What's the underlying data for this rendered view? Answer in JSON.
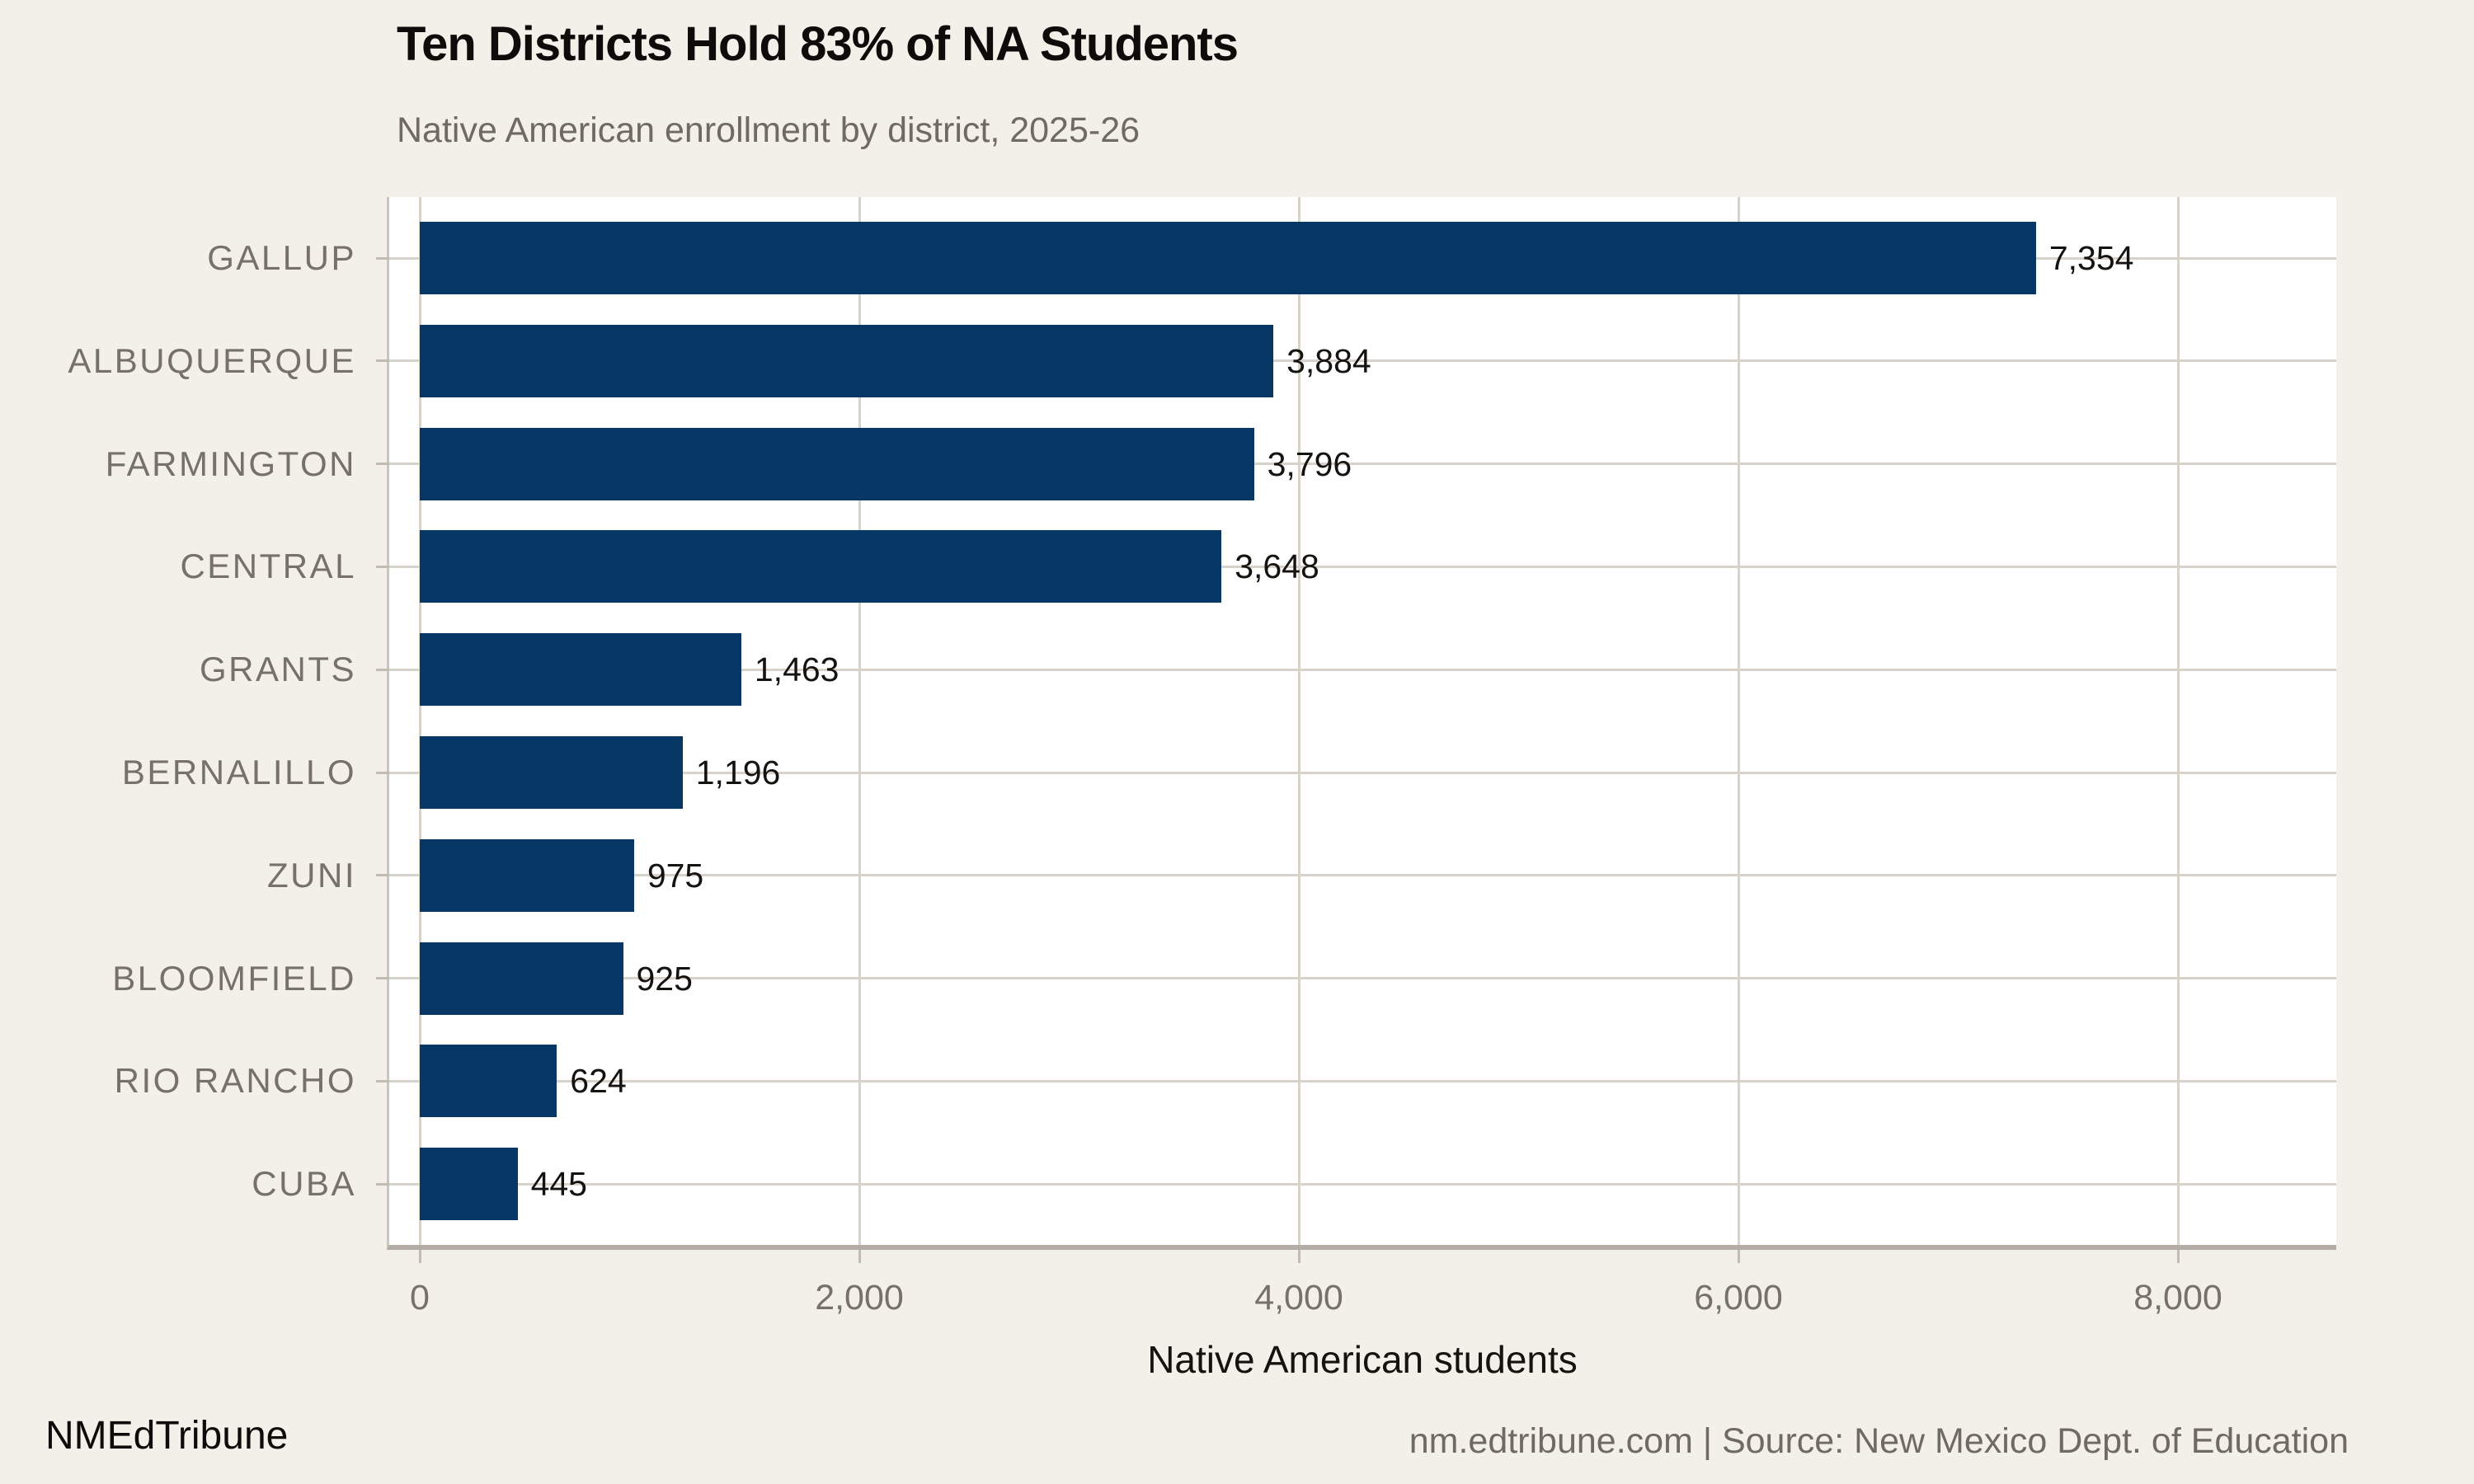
{
  "page": {
    "background_color": "#f3efe9"
  },
  "header": {
    "title": "Ten Districts Hold 83% of NA Students",
    "subtitle": "Native American enrollment by district, 2025-26"
  },
  "chart_data": {
    "type": "bar",
    "orientation": "horizontal",
    "title": "Ten Districts Hold 83% of NA Students",
    "subtitle": "Native American enrollment by district, 2025-26",
    "categories": [
      "GALLUP",
      "ALBUQUERQUE",
      "FARMINGTON",
      "CENTRAL",
      "GRANTS",
      "BERNALILLO",
      "ZUNI",
      "BLOOMFIELD",
      "RIO RANCHO",
      "CUBA"
    ],
    "values": [
      7354,
      3884,
      3796,
      3648,
      1463,
      1196,
      975,
      925,
      624,
      445
    ],
    "value_labels": [
      "7,354",
      "3,884",
      "3,796",
      "3,648",
      "1,463",
      "1,196",
      "975",
      "925",
      "624",
      "445"
    ],
    "xlabel": "Native American students",
    "ylabel": "",
    "x_ticks": [
      0,
      2000,
      4000,
      6000,
      8000
    ],
    "x_tick_labels": [
      "0",
      "2,000",
      "4,000",
      "6,000",
      "8,000"
    ],
    "xlim": [
      0,
      8700
    ],
    "grid": "on",
    "legend": "none",
    "plot_background_color": "#ffffff",
    "bar_color": "#063765",
    "gridline_color": "#d8d3ca",
    "tick_color": "#c2bcb4",
    "axis_line_color": "#b3ada5",
    "panel_border_color": "#cbc5bd",
    "category_label_color": "#76716a",
    "value_label_color": "#15130f"
  },
  "footer": {
    "brand": "NMEdTribune",
    "source": "nm.edtribune.com | Source: New Mexico Dept. of Education"
  }
}
